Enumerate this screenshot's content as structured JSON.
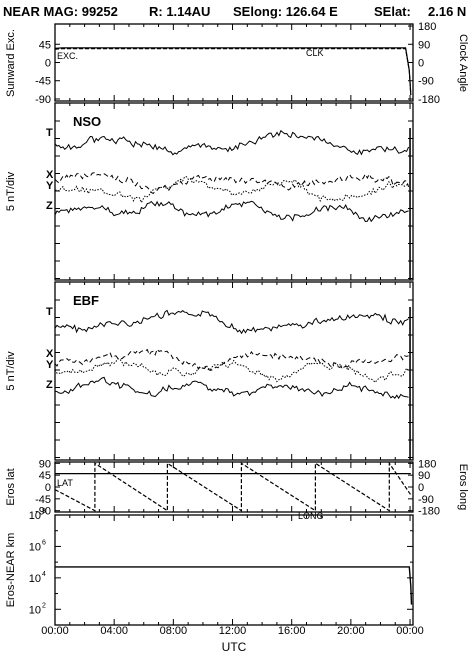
{
  "header": {
    "mission": "NEAR MAG: 99252",
    "distance": "R: 1.14AU",
    "selong": "SElong:  126.64 E",
    "selat": "SElat:",
    "selat_value": "2.16 N"
  },
  "chart_data": [
    {
      "type": "line",
      "panel": "angles",
      "ylabel_left": "Sunward Exc.",
      "ylabel_right": "Clock Angle",
      "yticks_left": [
        "45",
        "0",
        "-45",
        "-90"
      ],
      "yticks_right": [
        "180",
        "90",
        "0",
        "-90",
        "-180"
      ],
      "ylim_left": [
        -90,
        90
      ],
      "ylim_right": [
        -180,
        180
      ],
      "annotations": [
        "EXC.",
        "CLK"
      ],
      "series": [
        {
          "name": "EXC.",
          "x": [
            0,
            0.5,
            23.7,
            23.95,
            24.05
          ],
          "y": [
            35,
            36,
            36,
            -20,
            -80
          ]
        },
        {
          "name": "CLK",
          "x": [
            0,
            0.5,
            23.7,
            23.95,
            24.05
          ],
          "y": [
            33,
            34,
            34,
            -20,
            -80
          ]
        }
      ]
    },
    {
      "type": "line",
      "panel": "NSO",
      "label": "NSO",
      "ylabel": "5 nT/div",
      "component_labels": [
        "T",
        "X",
        "Y",
        "Z"
      ]
    },
    {
      "type": "line",
      "panel": "EBF",
      "label": "EBF",
      "ylabel": "5 nT/div",
      "component_labels": [
        "T",
        "X",
        "Y",
        "Z"
      ]
    },
    {
      "type": "line",
      "panel": "eros-position",
      "ylabel_left": "Eros lat",
      "ylabel_right": "Eros long",
      "yticks_left": [
        "90",
        "45",
        "0",
        "-45",
        "-90"
      ],
      "yticks_right": [
        "180",
        "90",
        "0",
        "-90",
        "-180"
      ],
      "ylim_left": [
        -90,
        90
      ],
      "ylim_right": [
        -180,
        180
      ],
      "annotations": [
        "LAT",
        "LONG"
      ],
      "series": [
        {
          "name": "LAT",
          "x": [
            0,
            24.05
          ],
          "y": [
            51,
            51
          ]
        },
        {
          "name": "LONG",
          "x": [
            0,
            2.7,
            2.7,
            7.6,
            7.6,
            12.6,
            12.6,
            17.6,
            17.6,
            22.6,
            22.6,
            24.05
          ],
          "y": [
            -20,
            -180,
            180,
            -180,
            180,
            -180,
            180,
            -180,
            180,
            -180,
            180,
            -60
          ]
        }
      ]
    },
    {
      "type": "line",
      "panel": "distance",
      "ylabel": "Eros-NEAR km",
      "yscale": "log",
      "yticks": [
        "10^8",
        "10^6",
        "10^4",
        "10^2"
      ],
      "ylim": [
        10,
        100000000
      ],
      "series": [
        {
          "name": "",
          "x": [
            0,
            23.95,
            24.05,
            24.1
          ],
          "y": [
            50000,
            50000,
            3000,
            200
          ]
        }
      ]
    }
  ],
  "x_axis": {
    "label": "UTC",
    "ticks": [
      "00:00",
      "04:00",
      "08:00",
      "12:00",
      "16:00",
      "20:00",
      "00:00"
    ]
  }
}
